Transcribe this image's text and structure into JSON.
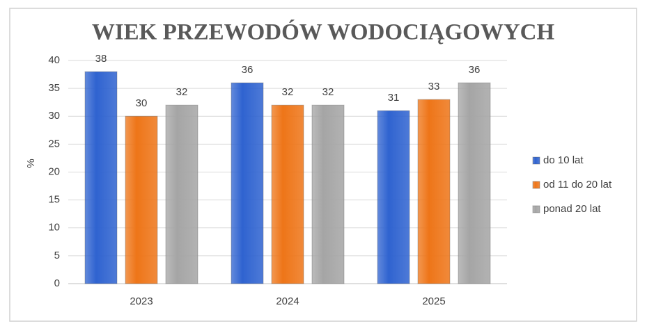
{
  "chart_data": {
    "type": "bar",
    "title": "WIEK PRZEWODÓW WODOCIĄGOWYCH",
    "y_label": "%",
    "categories": [
      "2023",
      "2024",
      "2025"
    ],
    "series": [
      {
        "name": "do 10 lat",
        "color": "#2f63d0",
        "values": [
          38,
          36,
          31
        ]
      },
      {
        "name": "od 11 do 20 lat",
        "color": "#ee7518",
        "values": [
          30,
          32,
          33
        ]
      },
      {
        "name": "ponad 20 lat",
        "color": "#a5a5a5",
        "values": [
          32,
          32,
          36
        ]
      }
    ],
    "ylim": [
      0,
      40
    ],
    "yticks": [
      0,
      5,
      10,
      15,
      20,
      25,
      30,
      35,
      40
    ],
    "grid": true,
    "legend": "right"
  }
}
